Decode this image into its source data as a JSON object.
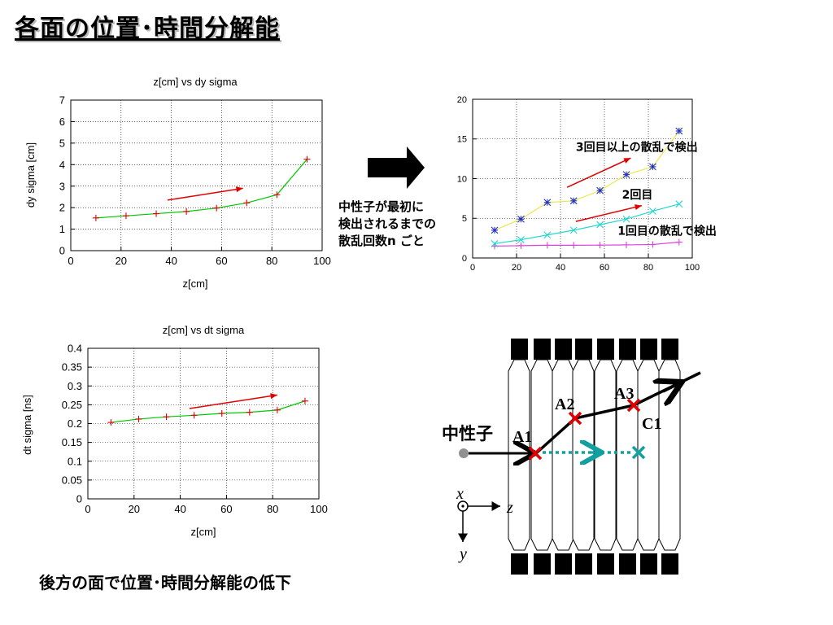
{
  "slide": {
    "title": "各面の位置･時間分解能",
    "footer": "後方の面で位置･時間分解能の低下",
    "note_lines": [
      "中性子が最初に",
      "検出されるまでの",
      "散乱回数n ごと"
    ]
  },
  "colors": {
    "green_line": "#00c800",
    "red_marker": "#e00000",
    "red_arrow": "#e00000",
    "magenta": "#e040e0",
    "cyan": "#20d8d0",
    "yellow": "#e8e84a",
    "blue": "#2030c0",
    "teal": "#10a0a0",
    "detector_black": "#000000"
  },
  "chart_data": [
    {
      "id": "dy",
      "type": "line",
      "title": "z[cm] vs dy sigma",
      "xlabel": "z[cm]",
      "ylabel": "dy sigma [cm]",
      "xlim": [
        0,
        100
      ],
      "ylim": [
        0,
        7
      ],
      "xticks": [
        0,
        20,
        40,
        60,
        80,
        100
      ],
      "yticks": [
        0,
        1,
        2,
        3,
        4,
        5,
        6,
        7
      ],
      "grid": true,
      "series": [
        {
          "x": [
            10,
            22,
            34,
            46,
            58,
            70,
            82,
            94
          ],
          "values": [
            1.52,
            1.62,
            1.72,
            1.82,
            1.98,
            2.22,
            2.6,
            4.25
          ]
        }
      ],
      "annotation_arrow": {
        "from": [
          38.5,
          2.35
        ],
        "to": [
          68.5,
          2.9
        ]
      }
    },
    {
      "id": "dt",
      "type": "line",
      "title": "z[cm] vs dt sigma",
      "xlabel": "z[cm]",
      "ylabel": "dt sigma [ns]",
      "xlim": [
        0,
        100
      ],
      "ylim": [
        0,
        0.4
      ],
      "xticks": [
        0,
        20,
        40,
        60,
        80,
        100
      ],
      "yticks": [
        0,
        0.05,
        0.1,
        0.15,
        0.2,
        0.25,
        0.3,
        0.35,
        0.4
      ],
      "grid": true,
      "series": [
        {
          "x": [
            10,
            22,
            34,
            46,
            58,
            70,
            82,
            94
          ],
          "values": [
            0.203,
            0.212,
            0.218,
            0.222,
            0.227,
            0.23,
            0.236,
            0.26
          ]
        }
      ],
      "annotation_arrow": {
        "from": [
          44,
          0.24
        ],
        "to": [
          82,
          0.276
        ]
      }
    },
    {
      "id": "nscatter",
      "type": "line",
      "title": "",
      "xlabel": "",
      "ylabel": "",
      "xlim": [
        0,
        100
      ],
      "ylim": [
        0,
        20
      ],
      "xticks": [
        0,
        20,
        40,
        60,
        80,
        100
      ],
      "yticks": [
        0,
        5,
        10,
        15,
        20
      ],
      "grid": true,
      "series": [
        {
          "marker": "plus",
          "color": "#e040e0",
          "x": [
            10,
            22,
            34,
            46,
            58,
            70,
            82,
            94
          ],
          "values": [
            1.5,
            1.55,
            1.6,
            1.6,
            1.62,
            1.65,
            1.7,
            2.0
          ]
        },
        {
          "marker": "cross",
          "color": "#20d8d0",
          "x": [
            10,
            22,
            34,
            46,
            58,
            70,
            82,
            94
          ],
          "values": [
            1.8,
            2.3,
            2.9,
            3.5,
            4.2,
            4.9,
            5.9,
            6.8
          ]
        },
        {
          "marker": "star",
          "color": "#e8e84a",
          "x": [
            10,
            22,
            34,
            46,
            58,
            70,
            82,
            94
          ],
          "values": [
            3.5,
            4.9,
            7.0,
            7.2,
            8.5,
            10.5,
            11.5,
            16.0
          ]
        }
      ],
      "labels": [
        {
          "text": "3回目以上の散乱で検出",
          "x": 47,
          "y": 13.5
        },
        {
          "text": "2回目",
          "x": 68,
          "y": 7.5
        },
        {
          "text": "1回目の散乱で検出",
          "x": 66,
          "y": 2.9
        }
      ],
      "annotation_arrows": [
        {
          "from": [
            43,
            8.9
          ],
          "to": [
            72,
            12.6
          ]
        },
        {
          "from": [
            47,
            4.6
          ],
          "to": [
            77,
            6.6
          ]
        }
      ]
    }
  ],
  "diagram": {
    "neutron_label": "中性子",
    "points": [
      "A1",
      "A2",
      "A3",
      "C1"
    ],
    "axis_labels": {
      "x": "x",
      "z": "z",
      "y": "y"
    }
  }
}
